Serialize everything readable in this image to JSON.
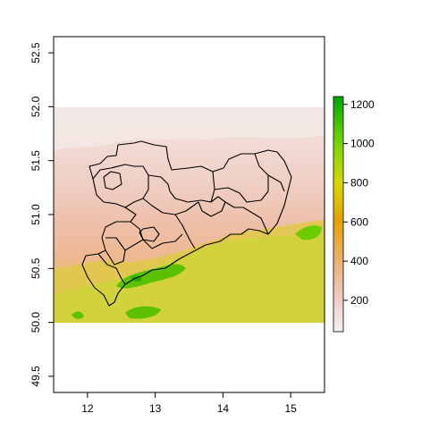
{
  "chart_data": {
    "type": "heatmap",
    "title": "",
    "xlabel": "",
    "ylabel": "",
    "x_ticks": [
      12,
      13,
      14,
      15
    ],
    "x_tick_labels": [
      "12",
      "13",
      "14",
      "15"
    ],
    "y_ticks": [
      49.5,
      50.0,
      50.5,
      51.0,
      51.5,
      52.0,
      52.5
    ],
    "y_tick_labels": [
      "49.5",
      "50.0",
      "50.5",
      "51.0",
      "51.5",
      "52.0",
      "52.5"
    ],
    "xlim": [
      11.5,
      15.5
    ],
    "ylim": [
      49.35,
      52.65
    ],
    "raster_extent": {
      "x": [
        11.5,
        15.5
      ],
      "y": [
        50.0,
        52.0
      ]
    },
    "colorbar": {
      "ticks": [
        200,
        400,
        600,
        800,
        1000,
        1200
      ],
      "tick_labels": [
        "200",
        "400",
        "600",
        "800",
        "1000",
        "1200"
      ],
      "range": [
        40,
        1240
      ],
      "palette": [
        "#f2f2f2",
        "#f0c9c0",
        "#ebb175",
        "#e6a100",
        "#d8d600",
        "#76d600",
        "#00a600"
      ]
    },
    "overlay": "administrative district boundaries (black outlines)",
    "grid": false,
    "legend": "colorbar-right"
  }
}
